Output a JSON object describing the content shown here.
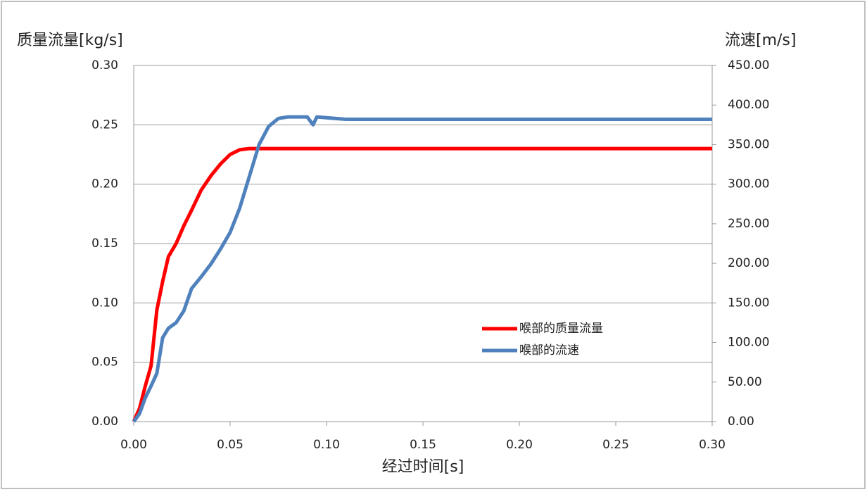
{
  "chart_data": {
    "type": "line",
    "y_label": "质量流量[kg/s]",
    "y2_label": "流速[m/s]",
    "x_label": "经过时间[s]",
    "x": [
      0,
      0.003,
      0.006,
      0.009,
      0.012,
      0.015,
      0.018,
      0.022,
      0.026,
      0.03,
      0.035,
      0.04,
      0.045,
      0.05,
      0.055,
      0.06,
      0.065,
      0.07,
      0.075,
      0.08,
      0.09,
      0.093,
      0.095,
      0.11,
      0.2,
      0.3
    ],
    "series": [
      {
        "name": "喉部的质量流量",
        "color": "#ff0000",
        "axis": "y",
        "values": [
          0,
          0.011,
          0.03,
          0.047,
          0.094,
          0.118,
          0.139,
          0.15,
          0.165,
          0.178,
          0.195,
          0.207,
          0.217,
          0.225,
          0.229,
          0.23,
          0.23,
          0.23,
          0.23,
          0.23,
          0.23,
          0.23,
          0.23,
          0.23,
          0.23,
          0.23
        ]
      },
      {
        "name": "喉部的流速",
        "color": "#4f81bd",
        "axis": "y2",
        "values": [
          0,
          10,
          30,
          45,
          61,
          106,
          118,
          125,
          140,
          168,
          183,
          199,
          218,
          239,
          270,
          310,
          350,
          373,
          383,
          385,
          385,
          375,
          385,
          382,
          382,
          382
        ]
      }
    ],
    "xlim": [
      0,
      0.3
    ],
    "xticks": [
      {
        "value": 0,
        "label": "0.00"
      },
      0.05,
      {
        "value": 0.1,
        "label": "0.10"
      },
      0.15,
      {
        "value": 0.2,
        "label": "0.20"
      },
      0.25,
      {
        "value": 0.3,
        "label": "0.30"
      }
    ],
    "ylim": [
      0,
      0.3
    ],
    "yticks": [
      {
        "value": 0,
        "label": "0.00"
      },
      0.05,
      {
        "value": 0.1,
        "label": "0.10"
      },
      0.15,
      {
        "value": 0.2,
        "label": "0.20"
      },
      0.25,
      {
        "value": 0.3,
        "label": "0.30"
      }
    ],
    "y2lim": [
      0,
      450
    ],
    "y2ticks": [
      {
        "value": 0,
        "label": "0.00"
      },
      {
        "value": 50,
        "label": "50.00"
      },
      {
        "value": 100,
        "label": "100.00"
      },
      {
        "value": 150,
        "label": "150.00"
      },
      {
        "value": 200,
        "label": "200.00"
      },
      {
        "value": 250,
        "label": "250.00"
      },
      {
        "value": 300,
        "label": "300.00"
      },
      {
        "value": 350,
        "label": "350.00"
      },
      {
        "value": 400,
        "label": "400.00"
      },
      {
        "value": 450,
        "label": "450.00"
      }
    ],
    "grid": true,
    "legend": "right"
  }
}
